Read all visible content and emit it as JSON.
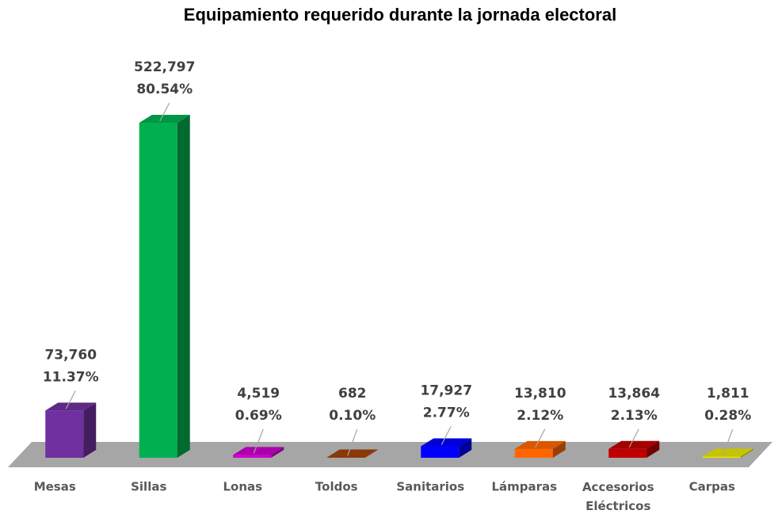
{
  "chart_data": {
    "type": "bar3d",
    "title": "Equipamiento requerido durante la jornada electoral",
    "categories": [
      "Mesas",
      "Sillas",
      "Lonas",
      "Toldos",
      "Sanitarios",
      "Lámparas",
      "Accesorios Eléctricos",
      "Carpas"
    ],
    "values": [
      73760,
      522797,
      4519,
      682,
      17927,
      13810,
      13864,
      1811
    ],
    "value_labels": [
      "73,760",
      "522,797",
      "4,519",
      "682",
      "17,927",
      "13,810",
      "13,864",
      "1,811"
    ],
    "shares": [
      11.37,
      80.54,
      0.69,
      0.1,
      2.77,
      2.12,
      2.13,
      0.28
    ],
    "share_labels": [
      "11.37%",
      "80.54%",
      "0.69%",
      "0.10%",
      "2.77%",
      "2.12%",
      "2.13%",
      "0.28%"
    ],
    "colors": [
      "#7030a0",
      "#00b050",
      "#cc00cc",
      "#a0430a",
      "#0000ff",
      "#ff6600",
      "#c00000",
      "#e6e600"
    ]
  }
}
